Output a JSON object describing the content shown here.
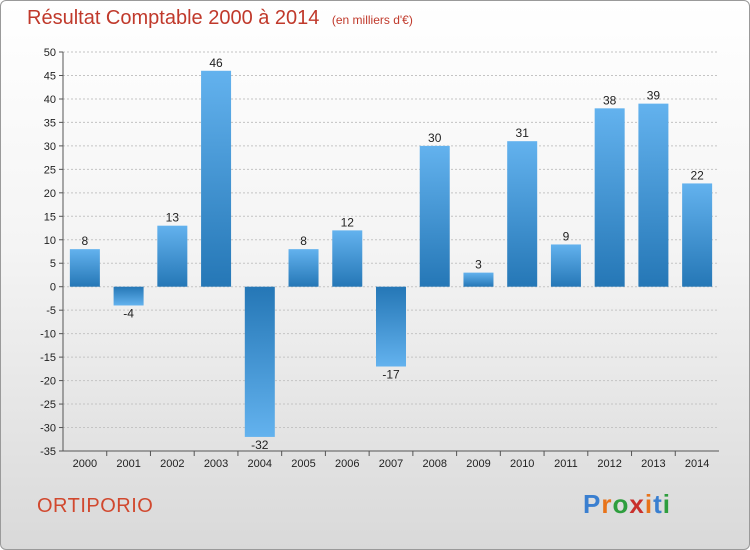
{
  "title": "Résultat Comptable 2000 à 2014",
  "unit": "(en milliers d'€)",
  "commune": "ORTIPORIO",
  "logo": {
    "text": "Proxiti",
    "colors": [
      "#3a7fd0",
      "#e8731a",
      "#2e9e3e",
      "#c9302c",
      "#e8731a",
      "#3a7fd0",
      "#2e9e3e"
    ]
  },
  "colors": {
    "bar_light": "#63b2ee",
    "bar_dark": "#2577b6",
    "title": "#c0392b"
  },
  "chart_data": {
    "type": "bar",
    "categories": [
      "2000",
      "2001",
      "2002",
      "2003",
      "2004",
      "2005",
      "2006",
      "2007",
      "2008",
      "2009",
      "2010",
      "2011",
      "2012",
      "2013",
      "2014"
    ],
    "values": [
      8,
      -4,
      13,
      46,
      -32,
      8,
      12,
      -17,
      30,
      3,
      31,
      9,
      38,
      39,
      22
    ],
    "data_labels": [
      "8",
      "-4",
      "13",
      "46",
      "-32",
      "8",
      "12",
      "-17",
      "30",
      "3",
      "31",
      "9",
      "38",
      "39",
      "22"
    ],
    "ylim": [
      -35,
      50
    ],
    "y_ticks": [
      50,
      45,
      40,
      35,
      30,
      25,
      20,
      15,
      10,
      5,
      0,
      -5,
      -10,
      -15,
      -20,
      -25,
      -30,
      -35
    ],
    "y_tick_labels": [
      "50",
      "45",
      "40",
      "35",
      "30",
      "25",
      "20",
      "15",
      "10",
      "5",
      "0",
      "-5",
      "-10",
      "-15",
      "-20",
      "-25",
      "-30",
      "-35"
    ],
    "grid": "horizontal dashed",
    "legend": "none"
  }
}
